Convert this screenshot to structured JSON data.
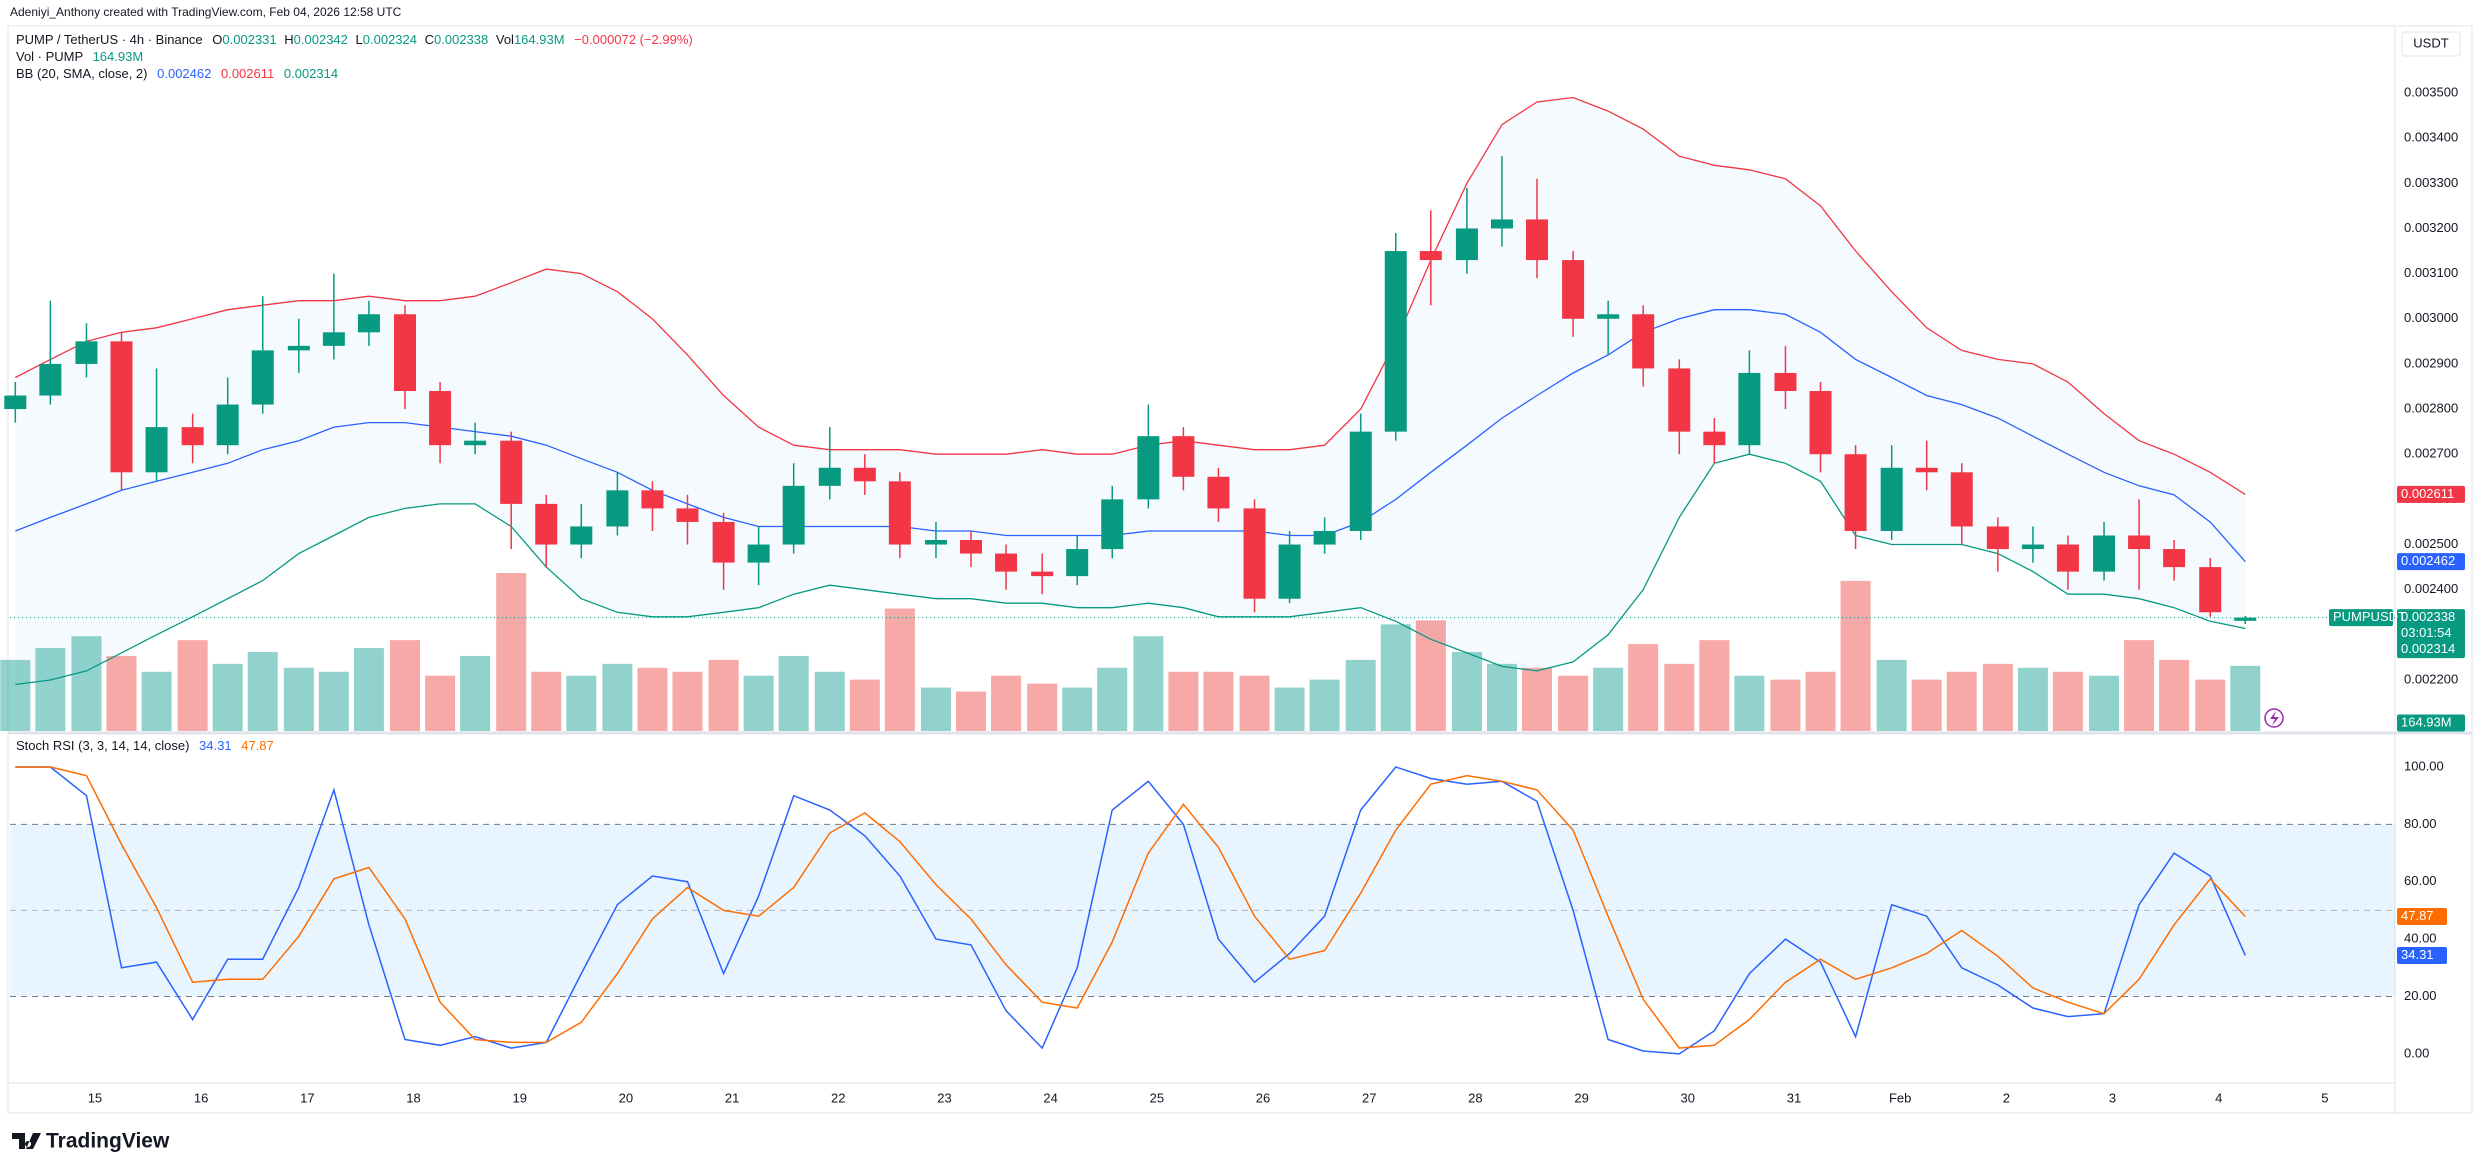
{
  "header": {
    "credit": "Adeniyi_Anthony created with TradingView.com, Feb 04, 2026 12:58 UTC",
    "currency": "USDT",
    "logo": "TradingView"
  },
  "chart_data": [
    {
      "type": "candlestick",
      "title": "PUMP / TetherUS · 4h · Binance",
      "ohlc_labels": [
        "O",
        "H",
        "L",
        "C",
        "Vol"
      ],
      "change_label": "−0.000072 (−2.99%)",
      "symbol_tag": "PUMPUSDT",
      "countdown": "03:01:54",
      "up_color": "#089981",
      "down_color": "#f23645",
      "x": [
        14.25,
        14.58,
        14.92,
        15.25,
        15.58,
        15.92,
        16.25,
        16.58,
        16.92,
        17.25,
        17.58,
        17.92,
        18.25,
        18.58,
        18.92,
        19.25,
        19.58,
        19.92,
        20.25,
        20.58,
        20.92,
        21.25,
        21.58,
        21.92,
        22.25,
        22.58,
        22.92,
        23.25,
        23.58,
        23.92,
        24.25,
        24.58,
        24.92,
        25.25,
        25.58,
        25.92,
        26.25,
        26.58,
        26.92,
        27.25,
        27.58,
        27.92,
        28.25,
        28.58,
        28.92,
        29.25,
        29.58,
        29.92,
        30.25,
        30.58,
        30.92,
        31.25,
        31.58,
        31.92,
        32.25,
        32.58,
        32.92,
        33.25,
        33.58,
        33.92,
        34.25,
        34.58,
        34.92,
        35.25
      ],
      "open": [
        0.0028,
        0.00283,
        0.0029,
        0.00295,
        0.00266,
        0.00276,
        0.00272,
        0.00281,
        0.00293,
        0.00294,
        0.00297,
        0.00301,
        0.00284,
        0.00272,
        0.00273,
        0.00259,
        0.0025,
        0.00254,
        0.00262,
        0.00258,
        0.00255,
        0.00246,
        0.0025,
        0.00263,
        0.00267,
        0.00264,
        0.0025,
        0.00251,
        0.00248,
        0.00244,
        0.00243,
        0.00249,
        0.0026,
        0.00274,
        0.00265,
        0.00258,
        0.00238,
        0.0025,
        0.00253,
        0.00275,
        0.00315,
        0.00313,
        0.0032,
        0.00322,
        0.00313,
        0.003,
        0.00301,
        0.00289,
        0.00275,
        0.00272,
        0.00288,
        0.00284,
        0.0027,
        0.00253,
        0.00267,
        0.00266,
        0.00254,
        0.00249,
        0.0025,
        0.00244,
        0.00252,
        0.00249,
        0.00245,
        0.002331
      ],
      "high": [
        0.00286,
        0.00304,
        0.00299,
        0.00297,
        0.00289,
        0.00279,
        0.00287,
        0.00305,
        0.003,
        0.0031,
        0.00304,
        0.00303,
        0.00286,
        0.00277,
        0.00275,
        0.00261,
        0.00259,
        0.00266,
        0.00264,
        0.00261,
        0.00257,
        0.00254,
        0.00268,
        0.00276,
        0.0027,
        0.00266,
        0.00255,
        0.00253,
        0.0025,
        0.00248,
        0.00252,
        0.00263,
        0.00281,
        0.00276,
        0.00267,
        0.0026,
        0.00253,
        0.00256,
        0.00279,
        0.00319,
        0.00324,
        0.00329,
        0.00336,
        0.00331,
        0.00315,
        0.00304,
        0.00303,
        0.00291,
        0.00278,
        0.00293,
        0.00294,
        0.00286,
        0.00272,
        0.00272,
        0.00273,
        0.00268,
        0.00256,
        0.00254,
        0.00252,
        0.00255,
        0.0026,
        0.00251,
        0.00247,
        0.002342
      ],
      "low": [
        0.00277,
        0.00281,
        0.00287,
        0.00262,
        0.00264,
        0.00268,
        0.0027,
        0.00279,
        0.00288,
        0.00291,
        0.00294,
        0.0028,
        0.00268,
        0.0027,
        0.00249,
        0.00245,
        0.00247,
        0.00252,
        0.00253,
        0.0025,
        0.0024,
        0.00241,
        0.00248,
        0.0026,
        0.00261,
        0.00247,
        0.00247,
        0.00245,
        0.0024,
        0.00239,
        0.00241,
        0.00247,
        0.00258,
        0.00262,
        0.00255,
        0.00235,
        0.00237,
        0.00248,
        0.00251,
        0.00273,
        0.00303,
        0.0031,
        0.00316,
        0.00309,
        0.00296,
        0.00292,
        0.00285,
        0.0027,
        0.00268,
        0.0027,
        0.0028,
        0.00266,
        0.00249,
        0.00251,
        0.00262,
        0.0025,
        0.00244,
        0.00246,
        0.0024,
        0.00242,
        0.0024,
        0.00242,
        0.00234,
        0.002324
      ],
      "close": [
        0.00283,
        0.0029,
        0.00295,
        0.00266,
        0.00276,
        0.00272,
        0.00281,
        0.00293,
        0.00294,
        0.00297,
        0.00301,
        0.00284,
        0.00272,
        0.00273,
        0.00259,
        0.0025,
        0.00254,
        0.00262,
        0.00258,
        0.00255,
        0.00246,
        0.0025,
        0.00263,
        0.00267,
        0.00264,
        0.0025,
        0.00251,
        0.00248,
        0.00244,
        0.00243,
        0.00249,
        0.0026,
        0.00274,
        0.00265,
        0.00258,
        0.00238,
        0.0025,
        0.00253,
        0.00275,
        0.00315,
        0.00313,
        0.0032,
        0.00322,
        0.00313,
        0.003,
        0.00301,
        0.00289,
        0.00275,
        0.00272,
        0.00288,
        0.00284,
        0.0027,
        0.00253,
        0.00267,
        0.00266,
        0.00254,
        0.00249,
        0.0025,
        0.00244,
        0.00252,
        0.00249,
        0.00245,
        0.00235,
        0.002338
      ],
      "volume": {
        "name": "Vol · PUMP",
        "last_value_label": "164.93M",
        "up_color": "rgba(38,166,154,0.5)",
        "down_color": "rgba(239,83,80,0.5)",
        "values": [
          180,
          210,
          240,
          190,
          150,
          230,
          170,
          200,
          160,
          150,
          210,
          230,
          140,
          190,
          400,
          150,
          140,
          170,
          160,
          150,
          180,
          140,
          190,
          150,
          130,
          310,
          110,
          100,
          140,
          120,
          110,
          160,
          240,
          150,
          150,
          140,
          110,
          130,
          180,
          270,
          280,
          200,
          170,
          160,
          140,
          160,
          220,
          170,
          230,
          140,
          130,
          150,
          380,
          180,
          130,
          150,
          170,
          160,
          150,
          140,
          230,
          180,
          130,
          164.93
        ]
      },
      "bb": {
        "name": "BB (20, SMA, close, 2)",
        "fill": "rgba(33,150,243,0.05)",
        "series": [
          {
            "color": "#2962ff",
            "values": [
              0.00253,
              0.00256,
              0.00259,
              0.00262,
              0.00264,
              0.00266,
              0.00268,
              0.00271,
              0.00273,
              0.00276,
              0.00277,
              0.00277,
              0.00276,
              0.00275,
              0.00274,
              0.00272,
              0.00269,
              0.00266,
              0.00262,
              0.00259,
              0.00256,
              0.00254,
              0.00254,
              0.00254,
              0.00254,
              0.00254,
              0.00253,
              0.00253,
              0.00252,
              0.00252,
              0.00252,
              0.00252,
              0.00253,
              0.00253,
              0.00253,
              0.00253,
              0.00252,
              0.00252,
              0.00255,
              0.0026,
              0.00266,
              0.00272,
              0.00278,
              0.00283,
              0.00288,
              0.00292,
              0.00297,
              0.003,
              0.00302,
              0.00302,
              0.00301,
              0.00297,
              0.00291,
              0.00287,
              0.00283,
              0.00281,
              0.00278,
              0.00274,
              0.0027,
              0.00266,
              0.00263,
              0.00261,
              0.00255,
              0.002462
            ]
          },
          {
            "color": "#f23645",
            "values": [
              0.00287,
              0.00291,
              0.00295,
              0.00297,
              0.00298,
              0.003,
              0.00302,
              0.00303,
              0.00304,
              0.00304,
              0.00305,
              0.00304,
              0.00304,
              0.00305,
              0.00308,
              0.00311,
              0.0031,
              0.00306,
              0.003,
              0.00292,
              0.00283,
              0.00276,
              0.00272,
              0.00271,
              0.00271,
              0.00271,
              0.0027,
              0.0027,
              0.0027,
              0.00271,
              0.0027,
              0.0027,
              0.00272,
              0.00273,
              0.00272,
              0.00271,
              0.00271,
              0.00272,
              0.0028,
              0.00295,
              0.00313,
              0.0033,
              0.00343,
              0.00348,
              0.00349,
              0.00346,
              0.00342,
              0.00336,
              0.00334,
              0.00333,
              0.00331,
              0.00325,
              0.00315,
              0.00306,
              0.00298,
              0.00293,
              0.00291,
              0.0029,
              0.00286,
              0.00279,
              0.00273,
              0.0027,
              0.00266,
              0.002611
            ]
          },
          {
            "color": "#089981",
            "values": [
              0.00219,
              0.0022,
              0.00222,
              0.00226,
              0.0023,
              0.00234,
              0.00238,
              0.00242,
              0.00248,
              0.00252,
              0.00256,
              0.00258,
              0.00259,
              0.00259,
              0.00254,
              0.00245,
              0.00238,
              0.00235,
              0.00234,
              0.00234,
              0.00235,
              0.00236,
              0.00239,
              0.00241,
              0.0024,
              0.00239,
              0.00238,
              0.00238,
              0.00237,
              0.00237,
              0.00236,
              0.00236,
              0.00237,
              0.00236,
              0.00234,
              0.00234,
              0.00234,
              0.00235,
              0.00236,
              0.00233,
              0.00229,
              0.00226,
              0.00223,
              0.00222,
              0.00224,
              0.0023,
              0.0024,
              0.00256,
              0.00268,
              0.0027,
              0.00268,
              0.00264,
              0.00252,
              0.0025,
              0.0025,
              0.0025,
              0.00248,
              0.00244,
              0.00239,
              0.00239,
              0.00238,
              0.00236,
              0.00233,
              0.002314
            ]
          }
        ]
      },
      "xlim": [
        14.2,
        36.66
      ],
      "xticks": [
        15,
        16,
        17,
        18,
        19,
        20,
        21,
        22,
        23,
        24,
        25,
        26,
        27,
        28,
        29,
        30,
        31,
        {
          "value": 32,
          "label": "Feb"
        },
        {
          "value": 33,
          "label": "2"
        },
        {
          "value": 34,
          "label": "3"
        },
        {
          "value": 35,
          "label": "4"
        },
        {
          "value": 36,
          "label": "5"
        }
      ],
      "ylim": [
        0.002087,
        0.003644
      ],
      "yticks": [
        {
          "value": 0.0022,
          "label": "0.002200"
        },
        {
          "value": 0.0023,
          "label": "0.002300"
        },
        {
          "value": 0.0024,
          "label": "0.002400"
        },
        {
          "value": 0.0025,
          "label": "0.002500"
        },
        {
          "value": 0.0026,
          "label": "0.002600"
        },
        {
          "value": 0.0027,
          "label": "0.002700"
        },
        {
          "value": 0.0028,
          "label": "0.002800"
        },
        {
          "value": 0.0029,
          "label": "0.002900"
        },
        {
          "value": 0.003,
          "label": "0.003000"
        },
        {
          "value": 0.0031,
          "label": "0.003100"
        },
        {
          "value": 0.0032,
          "label": "0.003200"
        },
        {
          "value": 0.0033,
          "label": "0.003300"
        },
        {
          "value": 0.0034,
          "label": "0.003400"
        },
        {
          "value": 0.0035,
          "label": "0.003500"
        }
      ]
    },
    {
      "type": "line",
      "title": "Stoch RSI (3, 3, 14, 14, close)",
      "band_fill": "rgba(33,150,243,0.1)",
      "bands": [
        20,
        80
      ],
      "midline": 50,
      "series": [
        {
          "color": "#2962ff",
          "values": [
            100,
            100,
            90,
            30,
            32,
            12,
            33,
            33,
            58,
            92,
            45,
            5,
            3,
            6,
            2,
            4,
            28,
            52,
            62,
            60,
            28,
            55,
            90,
            85,
            76,
            62,
            40,
            38,
            15,
            2,
            30,
            85,
            95,
            80,
            40,
            25,
            35,
            48,
            85,
            100,
            96,
            94,
            95,
            88,
            50,
            5,
            1,
            0,
            8,
            28,
            40,
            32,
            6,
            52,
            48,
            30,
            24,
            16,
            13,
            14,
            52,
            70,
            62,
            34.31
          ]
        },
        {
          "color": "#ff6d00",
          "values": [
            100,
            100,
            97,
            73,
            51,
            25,
            26,
            26,
            41,
            61,
            65,
            47,
            18,
            5,
            4,
            4,
            11,
            28,
            47,
            58,
            50,
            48,
            58,
            77,
            84,
            74,
            59,
            47,
            31,
            18,
            16,
            39,
            70,
            87,
            72,
            48,
            33,
            36,
            56,
            78,
            94,
            97,
            95,
            92,
            78,
            48,
            19,
            2,
            3,
            12,
            25,
            33,
            26,
            30,
            35,
            43,
            34,
            23,
            18,
            14,
            26,
            45,
            61,
            47.87
          ]
        }
      ],
      "ylim": [
        -9.8,
        110.8
      ],
      "yticks": [
        {
          "value": 0,
          "label": "0.00"
        },
        {
          "value": 20,
          "label": "20.00"
        },
        {
          "value": 40,
          "label": "40.00"
        },
        {
          "value": 60,
          "label": "60.00"
        },
        {
          "value": 80,
          "label": "80.00"
        },
        {
          "value": 100,
          "label": "100.00"
        }
      ]
    }
  ]
}
